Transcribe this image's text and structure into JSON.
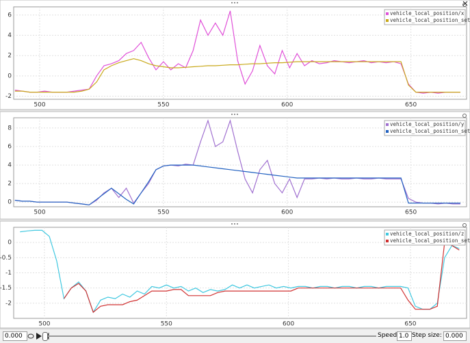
{
  "chart_data": [
    {
      "type": "line",
      "x": [
        490,
        493,
        496,
        499,
        502,
        505,
        508,
        511,
        514,
        517,
        520,
        523,
        526,
        529,
        532,
        535,
        538,
        541,
        544,
        547,
        550,
        553,
        556,
        559,
        562,
        565,
        568,
        571,
        574,
        577,
        580,
        583,
        586,
        589,
        592,
        595,
        598,
        601,
        604,
        607,
        610,
        613,
        616,
        619,
        622,
        625,
        628,
        631,
        634,
        637,
        640,
        643,
        646,
        649,
        652,
        655,
        658,
        661,
        664,
        667,
        670
      ],
      "xlim": [
        489.5,
        672.5
      ],
      "xticks": [
        500,
        550,
        600,
        650
      ],
      "ylim": [
        -2.3,
        6.8
      ],
      "yticks": [
        -2,
        0,
        2,
        4,
        6
      ],
      "grid": true,
      "legend": "top-right",
      "series": [
        {
          "name": "vehicle_local_position/x",
          "color": "#e050d8",
          "values": [
            -1.4,
            -1.5,
            -1.6,
            -1.6,
            -1.5,
            -1.6,
            -1.6,
            -1.6,
            -1.5,
            -1.4,
            -1.3,
            0,
            1.0,
            1.2,
            1.5,
            2.2,
            2.5,
            3.3,
            1.8,
            0.6,
            1.4,
            0.6,
            1.2,
            0.8,
            2.5,
            5.5,
            4.0,
            5.2,
            4.0,
            6.4,
            1.5,
            -0.8,
            0.5,
            3.0,
            1.0,
            0.2,
            2.5,
            0.8,
            2.2,
            1.0,
            1.5,
            1.2,
            1.3,
            1.5,
            1.4,
            1.3,
            1.4,
            1.5,
            1.3,
            1.4,
            1.3,
            1.4,
            1.2,
            -0.8,
            -1.6,
            -1.7,
            -1.6,
            -1.7,
            -1.6,
            -1.6,
            -1.6
          ]
        },
        {
          "name": "vehicle_local_position_setpoint/x",
          "color": "#c8a818",
          "values": [
            -1.5,
            -1.5,
            -1.6,
            -1.6,
            -1.6,
            -1.6,
            -1.6,
            -1.6,
            -1.6,
            -1.5,
            -1.3,
            -0.6,
            0.6,
            1.0,
            1.3,
            1.5,
            1.7,
            1.5,
            1.2,
            1.0,
            0.9,
            0.8,
            0.8,
            0.85,
            0.9,
            0.95,
            1.0,
            1.0,
            1.05,
            1.1,
            1.1,
            1.15,
            1.2,
            1.2,
            1.25,
            1.3,
            1.3,
            1.35,
            1.4,
            1.4,
            1.4,
            1.4,
            1.4,
            1.4,
            1.4,
            1.4,
            1.4,
            1.4,
            1.4,
            1.4,
            1.4,
            1.4,
            1.4,
            -0.9,
            -1.6,
            -1.6,
            -1.6,
            -1.6,
            -1.6,
            -1.6,
            -1.6
          ]
        }
      ]
    },
    {
      "type": "line",
      "x": [
        490,
        493,
        496,
        499,
        502,
        505,
        508,
        511,
        514,
        517,
        520,
        523,
        526,
        529,
        532,
        535,
        538,
        541,
        544,
        547,
        550,
        553,
        556,
        559,
        562,
        565,
        568,
        571,
        574,
        577,
        580,
        583,
        586,
        589,
        592,
        595,
        598,
        601,
        604,
        607,
        610,
        613,
        616,
        619,
        622,
        625,
        628,
        631,
        634,
        637,
        640,
        643,
        646,
        649,
        652,
        655,
        658,
        661,
        664,
        667,
        670
      ],
      "xlim": [
        489.5,
        672.5
      ],
      "xticks": [
        500,
        550,
        600,
        650
      ],
      "ylim": [
        -0.5,
        9.1
      ],
      "yticks": [
        0,
        2,
        4,
        6,
        8
      ],
      "grid": true,
      "legend": "top-right",
      "series": [
        {
          "name": "vehicle_local_position/y",
          "color": "#a070d0",
          "values": [
            0.2,
            0.1,
            0.1,
            0,
            0,
            0,
            0,
            0,
            -0.1,
            -0.2,
            -0.3,
            0.2,
            1.0,
            1.5,
            0.5,
            1.5,
            -0.1,
            1.0,
            2.0,
            3.5,
            3.9,
            4.0,
            3.9,
            4.1,
            4.0,
            6.5,
            8.8,
            6.0,
            6.5,
            8.8,
            5.5,
            2.5,
            1.0,
            3.5,
            4.5,
            2.0,
            1.0,
            2.5,
            0.5,
            2.5,
            2.5,
            2.6,
            2.5,
            2.6,
            2.5,
            2.5,
            2.6,
            2.5,
            2.5,
            2.6,
            2.5,
            2.5,
            2.5,
            0.4,
            0,
            -0.1,
            -0.1,
            -0.2,
            -0.1,
            -0.2,
            -0.2
          ]
        },
        {
          "name": "vehicle_local_position_setpoint/y",
          "color": "#2060c0",
          "values": [
            0.2,
            0.1,
            0.1,
            0,
            0,
            0,
            0,
            0,
            -0.1,
            -0.2,
            -0.3,
            0.3,
            0.9,
            1.5,
            0.9,
            0.3,
            -0.2,
            1.0,
            2.2,
            3.5,
            3.9,
            4.0,
            4.0,
            4.0,
            4.0,
            3.9,
            3.8,
            3.7,
            3.6,
            3.5,
            3.4,
            3.3,
            3.2,
            3.1,
            3.0,
            2.9,
            2.8,
            2.7,
            2.6,
            2.6,
            2.6,
            2.6,
            2.6,
            2.6,
            2.6,
            2.6,
            2.6,
            2.6,
            2.6,
            2.6,
            2.6,
            2.6,
            2.6,
            -0.1,
            -0.1,
            -0.1,
            -0.1,
            -0.1,
            -0.1,
            -0.1,
            -0.1
          ]
        }
      ]
    },
    {
      "type": "line",
      "x": [
        490,
        493,
        496,
        499,
        502,
        505,
        508,
        511,
        514,
        517,
        520,
        523,
        526,
        529,
        532,
        535,
        538,
        541,
        544,
        547,
        550,
        553,
        556,
        559,
        562,
        565,
        568,
        571,
        574,
        577,
        580,
        583,
        586,
        589,
        592,
        595,
        598,
        601,
        604,
        607,
        610,
        613,
        616,
        619,
        622,
        625,
        628,
        631,
        634,
        637,
        640,
        643,
        646,
        649,
        652,
        655,
        658,
        661,
        664,
        667,
        670
      ],
      "xlim": [
        487.4,
        673
      ],
      "xticks": [
        500,
        550,
        600,
        650
      ],
      "ylim": [
        -2.5,
        0.5
      ],
      "yticks": [
        0,
        -0.5,
        -1,
        -1.5,
        -2
      ],
      "grid": true,
      "legend": "top-right",
      "series": [
        {
          "name": "vehicle_local_position/z",
          "color": "#40c8e0",
          "values": [
            0.35,
            0.38,
            0.4,
            0.4,
            0.2,
            -0.6,
            -1.85,
            -1.5,
            -1.3,
            -1.6,
            -2.3,
            -1.9,
            -1.8,
            -1.85,
            -1.7,
            -1.8,
            -1.6,
            -1.7,
            -1.45,
            -1.5,
            -1.4,
            -1.5,
            -1.45,
            -1.6,
            -1.5,
            -1.65,
            -1.55,
            -1.6,
            -1.55,
            -1.4,
            -1.5,
            -1.4,
            -1.5,
            -1.45,
            -1.4,
            -1.5,
            -1.45,
            -1.5,
            -1.45,
            -1.45,
            -1.5,
            -1.45,
            -1.45,
            -1.5,
            -1.45,
            -1.45,
            -1.5,
            -1.45,
            -1.45,
            -1.5,
            -1.45,
            -1.45,
            -1.45,
            -1.5,
            -2.1,
            -2.2,
            -2.2,
            -2.0,
            -0.5,
            -0.1,
            -0.2
          ]
        },
        {
          "name": "vehicle_local_position_setpoint/z",
          "color": "#d03030",
          "values": [
            null,
            null,
            null,
            null,
            null,
            null,
            -1.85,
            -1.5,
            -1.35,
            -1.6,
            -2.3,
            -2.1,
            -2.05,
            -2.05,
            -2.05,
            -1.95,
            -1.9,
            -1.75,
            -1.6,
            -1.6,
            -1.6,
            -1.55,
            -1.55,
            -1.75,
            -1.75,
            -1.75,
            -1.75,
            -1.65,
            -1.6,
            -1.6,
            -1.6,
            -1.6,
            -1.6,
            -1.6,
            -1.6,
            -1.6,
            -1.6,
            -1.6,
            -1.5,
            -1.5,
            -1.5,
            -1.5,
            -1.5,
            -1.5,
            -1.5,
            -1.5,
            -1.5,
            -1.5,
            -1.5,
            -1.5,
            -1.5,
            -1.5,
            -1.5,
            -1.9,
            -2.2,
            -2.2,
            -2.2,
            -2.1,
            0,
            -0.1,
            -0.25
          ]
        }
      ]
    }
  ],
  "toolbar": {
    "time": "0.000",
    "speed_label": "Speed:",
    "speed": "1.0",
    "step_label": "Step size:",
    "step": "0.000"
  }
}
